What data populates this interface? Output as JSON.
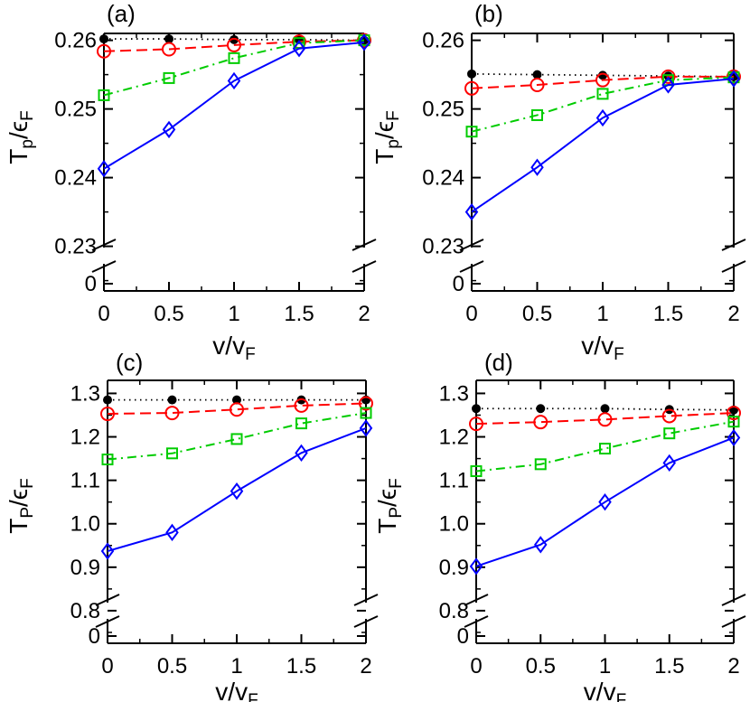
{
  "chart_data": [
    {
      "type": "line",
      "panel_label": "(a)",
      "xlabel": {
        "main": "v/v",
        "sub": "F"
      },
      "ylabel": {
        "main": "T",
        "sub1": "p",
        "mid": "/ϵ",
        "sub2": "F"
      },
      "x_ticks": [
        "0",
        "0.5",
        "1",
        "1.5",
        "2"
      ],
      "y_ticks": [
        "0.23",
        "0.24",
        "0.25",
        "0.26"
      ],
      "y_break_tick": "0",
      "xlim": [
        0,
        2
      ],
      "ylim": [
        0.2235,
        0.261
      ],
      "y_break": true,
      "grid": false,
      "series": [
        {
          "marker": "dot",
          "line": "dotted",
          "color": "#000000",
          "x": [
            0,
            0.5,
            1,
            1.5,
            2
          ],
          "y": [
            0.2602,
            0.2602,
            0.2601,
            0.2601,
            0.26
          ]
        },
        {
          "marker": "circle",
          "line": "dashed",
          "color": "#ff0000",
          "x": [
            0,
            0.5,
            1,
            1.5,
            2
          ],
          "y": [
            0.2584,
            0.2587,
            0.2593,
            0.2598,
            0.26
          ]
        },
        {
          "marker": "square",
          "line": "dashdot",
          "color": "#00cc00",
          "x": [
            0,
            0.5,
            1,
            1.5,
            2
          ],
          "y": [
            0.252,
            0.2545,
            0.2574,
            0.2596,
            0.26
          ]
        },
        {
          "marker": "diamond",
          "line": "solid",
          "color": "#0000ff",
          "x": [
            0,
            0.5,
            1,
            1.5,
            2
          ],
          "y": [
            0.2413,
            0.247,
            0.2541,
            0.2588,
            0.2597
          ]
        }
      ]
    },
    {
      "type": "line",
      "panel_label": "(b)",
      "xlabel": {
        "main": "v/v",
        "sub": "F"
      },
      "ylabel": {
        "main": "T",
        "sub1": "p",
        "mid": "/ϵ",
        "sub2": "F"
      },
      "x_ticks": [
        "0",
        "0.5",
        "1",
        "1.5",
        "2"
      ],
      "y_ticks": [
        "0.23",
        "0.24",
        "0.25",
        "0.26"
      ],
      "y_break_tick": "0",
      "xlim": [
        0,
        2
      ],
      "ylim": [
        0.2235,
        0.261
      ],
      "y_break": true,
      "grid": false,
      "series": [
        {
          "marker": "dot",
          "line": "dotted",
          "color": "#000000",
          "x": [
            0,
            0.5,
            1,
            1.5,
            2
          ],
          "y": [
            0.2551,
            0.255,
            0.2549,
            0.2548,
            0.2547
          ]
        },
        {
          "marker": "circle",
          "line": "dashed",
          "color": "#ff0000",
          "x": [
            0,
            0.5,
            1,
            1.5,
            2
          ],
          "y": [
            0.253,
            0.2535,
            0.2542,
            0.2547,
            0.2547
          ]
        },
        {
          "marker": "square",
          "line": "dashdot",
          "color": "#00cc00",
          "x": [
            0,
            0.5,
            1,
            1.5,
            2
          ],
          "y": [
            0.2467,
            0.2491,
            0.2522,
            0.2542,
            0.2546
          ]
        },
        {
          "marker": "diamond",
          "line": "solid",
          "color": "#0000ff",
          "x": [
            0,
            0.5,
            1,
            1.5,
            2
          ],
          "y": [
            0.235,
            0.2415,
            0.2487,
            0.2535,
            0.2544
          ]
        }
      ]
    },
    {
      "type": "line",
      "panel_label": "(c)",
      "xlabel": {
        "main": "v/v",
        "sub": "F"
      },
      "ylabel": {
        "main": "T",
        "sub1": "P",
        "mid": "/ϵ",
        "sub2": "F"
      },
      "x_ticks": [
        "0",
        "0.5",
        "1",
        "1.5",
        "2"
      ],
      "y_ticks": [
        "0.8",
        "0.9",
        "1.0",
        "1.1",
        "1.2",
        "1.3"
      ],
      "y_break_tick": "0",
      "xlim": [
        0,
        2
      ],
      "ylim": [
        0.725,
        1.33
      ],
      "y_break": true,
      "grid": false,
      "series": [
        {
          "marker": "dot",
          "line": "dotted",
          "color": "#000000",
          "x": [
            0,
            0.5,
            1,
            1.5,
            2
          ],
          "y": [
            1.285,
            1.285,
            1.285,
            1.285,
            1.285
          ]
        },
        {
          "marker": "circle",
          "line": "dashed",
          "color": "#ff0000",
          "x": [
            0,
            0.5,
            1,
            1.5,
            2
          ],
          "y": [
            1.253,
            1.255,
            1.263,
            1.272,
            1.277
          ]
        },
        {
          "marker": "square",
          "line": "dashdot",
          "color": "#00cc00",
          "x": [
            0,
            0.5,
            1,
            1.5,
            2
          ],
          "y": [
            1.148,
            1.162,
            1.195,
            1.231,
            1.255
          ]
        },
        {
          "marker": "diamond",
          "line": "solid",
          "color": "#0000ff",
          "x": [
            0,
            0.5,
            1,
            1.5,
            2
          ],
          "y": [
            0.937,
            0.98,
            1.075,
            1.163,
            1.22
          ]
        }
      ]
    },
    {
      "type": "line",
      "panel_label": "(d)",
      "xlabel": {
        "main": "v/v",
        "sub": "F"
      },
      "ylabel": {
        "main": "T",
        "sub1": "P",
        "mid": "/ϵ",
        "sub2": "F"
      },
      "x_ticks": [
        "0",
        "0.5",
        "1",
        "1.5",
        "2"
      ],
      "y_ticks": [
        "0.8",
        "0.9",
        "1.0",
        "1.1",
        "1.2",
        "1.3"
      ],
      "y_break_tick": "0",
      "xlim": [
        0,
        2
      ],
      "ylim": [
        0.725,
        1.33
      ],
      "y_break": true,
      "grid": false,
      "series": [
        {
          "marker": "dot",
          "line": "dotted",
          "color": "#000000",
          "x": [
            0,
            0.5,
            1,
            1.5,
            2
          ],
          "y": [
            1.265,
            1.265,
            1.265,
            1.263,
            1.262
          ]
        },
        {
          "marker": "circle",
          "line": "dashed",
          "color": "#ff0000",
          "x": [
            0,
            0.5,
            1,
            1.5,
            2
          ],
          "y": [
            1.23,
            1.234,
            1.24,
            1.248,
            1.255
          ]
        },
        {
          "marker": "square",
          "line": "dashdot",
          "color": "#00cc00",
          "x": [
            0,
            0.5,
            1,
            1.5,
            2
          ],
          "y": [
            1.121,
            1.137,
            1.173,
            1.208,
            1.235
          ]
        },
        {
          "marker": "diamond",
          "line": "solid",
          "color": "#0000ff",
          "x": [
            0,
            0.5,
            1,
            1.5,
            2
          ],
          "y": [
            0.902,
            0.952,
            1.05,
            1.14,
            1.198
          ]
        }
      ]
    }
  ]
}
